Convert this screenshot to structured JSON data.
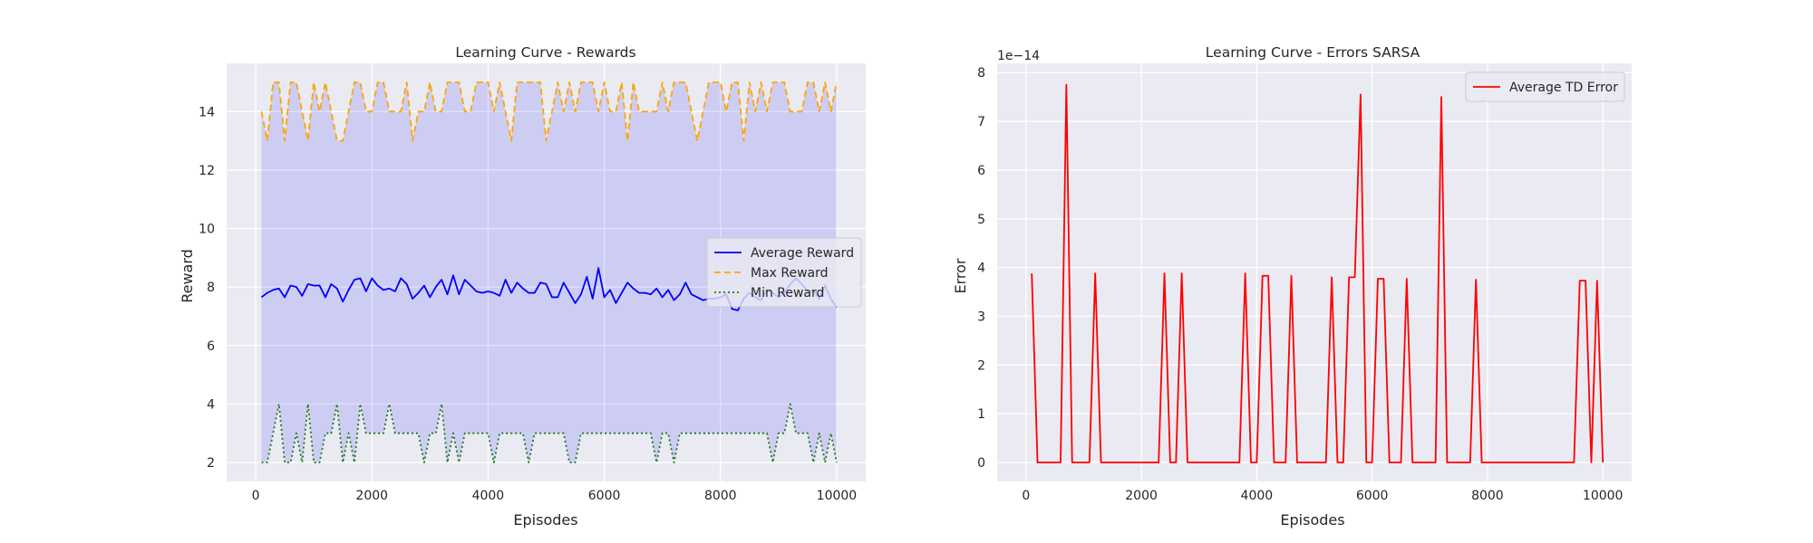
{
  "chart_data": [
    {
      "type": "line",
      "title": "Learning Curve - Rewards",
      "xlabel": "Episodes",
      "ylabel": "Reward",
      "xlim": [
        -500,
        10500
      ],
      "ylim": [
        1.35,
        15.65
      ],
      "xticks": [
        0,
        2000,
        4000,
        6000,
        8000,
        10000
      ],
      "yticks": [
        2,
        4,
        6,
        8,
        10,
        12,
        14
      ],
      "xtick_labels": [
        "0",
        "2000",
        "4000",
        "6000",
        "8000",
        "10000"
      ],
      "ytick_labels": [
        "2",
        "4",
        "6",
        "8",
        "10",
        "12",
        "14"
      ],
      "grid": true,
      "legend_position": "center-right",
      "fill_between": {
        "lower": "Min Reward",
        "upper": "Max Reward",
        "color": "#0000ff",
        "alpha": 0.12
      },
      "x": [
        100,
        200,
        300,
        400,
        500,
        600,
        700,
        800,
        900,
        1000,
        1100,
        1200,
        1300,
        1400,
        1500,
        1600,
        1700,
        1800,
        1900,
        2000,
        2100,
        2200,
        2300,
        2400,
        2500,
        2600,
        2700,
        2800,
        2900,
        3000,
        3100,
        3200,
        3300,
        3400,
        3500,
        3600,
        3700,
        3800,
        3900,
        4000,
        4100,
        4200,
        4300,
        4400,
        4500,
        4600,
        4700,
        4800,
        4900,
        5000,
        5100,
        5200,
        5300,
        5400,
        5500,
        5600,
        5700,
        5800,
        5900,
        6000,
        6100,
        6200,
        6300,
        6400,
        6500,
        6600,
        6700,
        6800,
        6900,
        7000,
        7100,
        7200,
        7300,
        7400,
        7500,
        7600,
        7700,
        7800,
        7900,
        8000,
        8100,
        8200,
        8300,
        8400,
        8500,
        8600,
        8700,
        8800,
        8900,
        9000,
        9100,
        9200,
        9300,
        9400,
        9500,
        9600,
        9700,
        9800,
        9900,
        10000
      ],
      "series": [
        {
          "name": "Average Reward",
          "color": "#0000ff",
          "style": "solid",
          "values": [
            7.65,
            7.8,
            7.9,
            7.95,
            7.65,
            8.05,
            8.0,
            7.7,
            8.1,
            8.05,
            8.05,
            7.65,
            8.1,
            7.95,
            7.5,
            7.9,
            8.25,
            8.3,
            7.85,
            8.3,
            8.05,
            7.9,
            7.95,
            7.85,
            8.3,
            8.1,
            7.6,
            7.8,
            8.05,
            7.65,
            8.0,
            8.25,
            7.75,
            8.4,
            7.75,
            8.25,
            8.05,
            7.85,
            7.8,
            7.85,
            7.8,
            7.7,
            8.25,
            7.8,
            8.15,
            7.95,
            7.8,
            7.8,
            8.15,
            8.1,
            7.65,
            7.65,
            8.15,
            7.8,
            7.45,
            7.75,
            8.35,
            7.6,
            8.65,
            7.65,
            7.9,
            7.45,
            7.8,
            8.15,
            7.95,
            7.8,
            7.8,
            7.75,
            7.95,
            7.65,
            7.9,
            7.55,
            7.75,
            8.15,
            7.75,
            7.65,
            7.55,
            7.6,
            7.6,
            7.65,
            7.75,
            7.25,
            7.2,
            7.6,
            7.8,
            7.65,
            7.55,
            7.9,
            7.8,
            7.65,
            7.8,
            8.1,
            8.3,
            8.1,
            7.85,
            7.9,
            7.6,
            8.05,
            7.6,
            7.3
          ]
        },
        {
          "name": "Max Reward",
          "color": "#ffa500",
          "style": "dashed",
          "values": [
            14,
            13,
            15,
            15,
            13,
            15,
            15,
            14,
            13,
            15,
            14,
            15,
            14,
            13,
            13,
            14,
            15,
            15,
            14,
            14,
            15,
            15,
            14,
            14,
            14,
            15,
            13,
            14,
            14,
            15,
            14,
            14,
            15,
            15,
            15,
            14,
            14,
            15,
            15,
            15,
            14,
            15,
            14,
            13,
            15,
            15,
            15,
            15,
            15,
            13,
            14,
            15,
            14,
            15,
            14,
            15,
            15,
            15,
            14,
            15,
            14,
            14,
            15,
            13,
            15,
            14,
            14,
            14,
            14,
            15,
            14,
            15,
            15,
            15,
            14,
            13,
            14,
            15,
            15,
            15,
            14,
            15,
            15,
            13,
            15,
            14,
            15,
            14,
            15,
            15,
            15,
            14,
            14,
            14,
            15,
            15,
            14,
            15,
            14,
            15
          ]
        },
        {
          "name": "Min Reward",
          "color": "#1a7a1a",
          "style": "dotted",
          "values": [
            2,
            2,
            3,
            4,
            2,
            2,
            3,
            2,
            4,
            2,
            2,
            3,
            3,
            4,
            2,
            3,
            2,
            4,
            3,
            3,
            3,
            3,
            4,
            3,
            3,
            3,
            3,
            3,
            2,
            3,
            3,
            4,
            2,
            3,
            2,
            3,
            3,
            3,
            3,
            3,
            2,
            3,
            3,
            3,
            3,
            3,
            2,
            3,
            3,
            3,
            3,
            3,
            3,
            2,
            2,
            3,
            3,
            3,
            3,
            3,
            3,
            3,
            3,
            3,
            3,
            3,
            3,
            3,
            2,
            3,
            3,
            2,
            3,
            3,
            3,
            3,
            3,
            3,
            3,
            3,
            3,
            3,
            3,
            3,
            3,
            3,
            3,
            3,
            2,
            3,
            3,
            4,
            3,
            3,
            3,
            2,
            3,
            2,
            3,
            2
          ]
        }
      ]
    },
    {
      "type": "line",
      "title": "Learning Curve - Errors SARSA",
      "xlabel": "Episodes",
      "ylabel": "Error",
      "offset_text": "1e−14",
      "xlim": [
        -500,
        10500
      ],
      "ylim": [
        -0.39,
        8.19
      ],
      "xticks": [
        0,
        2000,
        4000,
        6000,
        8000,
        10000
      ],
      "yticks": [
        0,
        1,
        2,
        3,
        4,
        5,
        6,
        7,
        8
      ],
      "xtick_labels": [
        "0",
        "2000",
        "4000",
        "6000",
        "8000",
        "10000"
      ],
      "ytick_labels": [
        "0",
        "1",
        "2",
        "3",
        "4",
        "5",
        "6",
        "7",
        "8"
      ],
      "grid": true,
      "legend_position": "top-right",
      "x": [
        100,
        200,
        300,
        400,
        500,
        600,
        700,
        800,
        900,
        1000,
        1100,
        1200,
        1300,
        1400,
        1500,
        1600,
        1700,
        1800,
        1900,
        2000,
        2100,
        2200,
        2300,
        2400,
        2500,
        2600,
        2700,
        2800,
        2900,
        3000,
        3100,
        3200,
        3300,
        3400,
        3500,
        3600,
        3700,
        3800,
        3900,
        4000,
        4100,
        4200,
        4300,
        4400,
        4500,
        4600,
        4700,
        4800,
        4900,
        5000,
        5100,
        5200,
        5300,
        5400,
        5500,
        5600,
        5700,
        5800,
        5900,
        6000,
        6100,
        6200,
        6300,
        6400,
        6500,
        6600,
        6700,
        6800,
        6900,
        7000,
        7100,
        7200,
        7300,
        7400,
        7500,
        7600,
        7700,
        7800,
        7900,
        8000,
        8100,
        8200,
        8300,
        8400,
        8500,
        8600,
        8700,
        8800,
        8900,
        9000,
        9100,
        9200,
        9300,
        9400,
        9500,
        9600,
        9700,
        9800,
        9900,
        10000
      ],
      "series": [
        {
          "name": "Average TD Error",
          "color": "#ff0000",
          "style": "solid",
          "values": [
            3.88,
            0,
            0,
            0,
            0,
            0,
            7.75,
            0,
            0,
            0,
            0,
            3.88,
            0,
            0,
            0,
            0,
            0,
            0,
            0,
            0,
            0,
            0,
            0,
            3.88,
            0,
            0,
            3.88,
            0,
            0,
            0,
            0,
            0,
            0,
            0,
            0,
            0,
            0,
            3.88,
            0,
            0,
            3.83,
            3.83,
            0,
            0,
            0,
            3.83,
            0,
            0,
            0,
            0,
            0,
            0,
            3.8,
            0,
            0,
            3.8,
            3.8,
            7.55,
            0,
            0,
            3.77,
            3.77,
            0,
            0,
            0,
            3.77,
            0,
            0,
            0,
            0,
            0,
            7.5,
            0,
            0,
            0,
            0,
            0,
            3.75,
            0,
            0,
            0,
            0,
            0,
            0,
            0,
            0,
            0,
            0,
            0,
            0,
            0,
            0,
            0,
            0,
            0,
            3.73,
            3.73,
            0,
            3.73,
            0
          ]
        }
      ]
    }
  ]
}
